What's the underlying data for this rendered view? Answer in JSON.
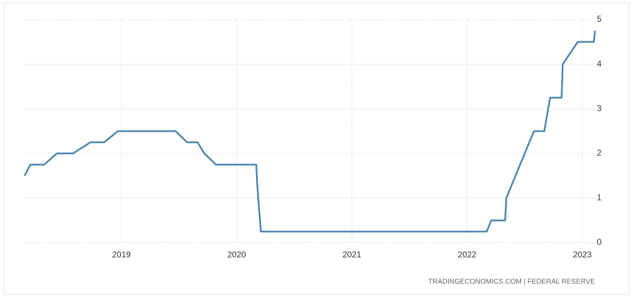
{
  "chart_data": {
    "type": "line",
    "source": "TRADINGECONOMICS.COM | FEDERAL RESERVE",
    "x": [
      2018.16,
      2018.21,
      2018.33,
      2018.44,
      2018.58,
      2018.73,
      2018.85,
      2018.97,
      2019.47,
      2019.57,
      2019.66,
      2019.72,
      2019.82,
      2020.17,
      2020.18,
      2020.21,
      2022.17,
      2022.21,
      2022.33,
      2022.34,
      2022.58,
      2022.67,
      2022.72,
      2022.82,
      2022.83,
      2022.96,
      2023.1,
      2023.11
    ],
    "series": [
      {
        "color": "#5085ad",
        "values": [
          1.5,
          1.75,
          1.75,
          2.0,
          2.0,
          2.25,
          2.25,
          2.5,
          2.5,
          2.25,
          2.25,
          2.0,
          1.75,
          1.75,
          1.25,
          0.25,
          0.25,
          0.5,
          0.5,
          1.0,
          2.5,
          2.5,
          3.25,
          3.25,
          4.0,
          4.5,
          4.5,
          4.75
        ]
      }
    ],
    "xlim": [
      2018.16,
      2023.11
    ],
    "xticks": [
      2019,
      2020,
      2021,
      2022,
      2023
    ],
    "ylim": [
      0,
      5
    ],
    "yticks": [
      0,
      1,
      2,
      3,
      4,
      5
    ],
    "grid": true
  }
}
